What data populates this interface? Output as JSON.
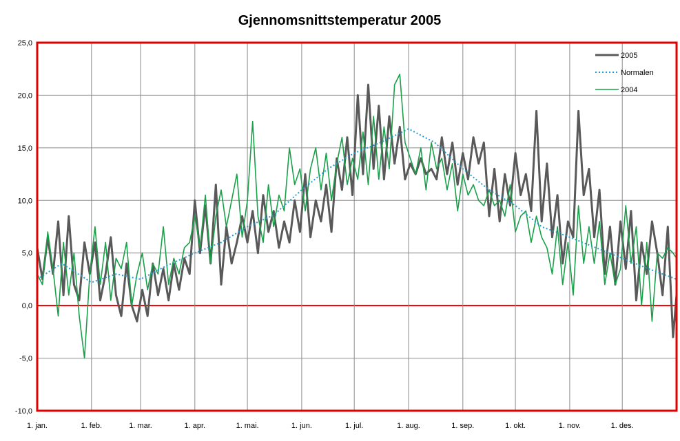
{
  "chart_data": {
    "type": "line",
    "title": "Gjennomsnittstemperatur 2005",
    "xlabel": "",
    "ylabel": "",
    "ylim": [
      -10,
      25
    ],
    "y_ticks": [
      "25,0",
      "20,0",
      "15,0",
      "10,0",
      "5,0",
      "0,0",
      "-5,0",
      "-10,0"
    ],
    "y_tick_values": [
      25,
      20,
      15,
      10,
      5,
      0,
      -5,
      -10
    ],
    "x_ticks": [
      "1. jan.",
      "1. feb.",
      "1. mar.",
      "1. apr.",
      "1. mai.",
      "1. jun.",
      "1. jul.",
      "1. aug.",
      "1. sep.",
      "1. okt.",
      "1. nov.",
      "1. des."
    ],
    "x_tick_days": [
      1,
      32,
      60,
      91,
      121,
      152,
      182,
      213,
      244,
      274,
      305,
      335
    ],
    "x_range_days": [
      1,
      366
    ],
    "grid": true,
    "legend_position": "top-right",
    "series": [
      {
        "name": "2005",
        "color": "#595959",
        "x_days": [
          1,
          4,
          7,
          10,
          13,
          16,
          19,
          22,
          25,
          28,
          31,
          34,
          37,
          40,
          43,
          46,
          49,
          52,
          55,
          58,
          61,
          64,
          67,
          70,
          73,
          76,
          79,
          82,
          85,
          88,
          91,
          94,
          97,
          100,
          103,
          106,
          109,
          112,
          115,
          118,
          121,
          124,
          127,
          130,
          133,
          136,
          139,
          142,
          145,
          148,
          151,
          154,
          157,
          160,
          163,
          166,
          169,
          172,
          175,
          178,
          181,
          184,
          187,
          190,
          193,
          196,
          199,
          202,
          205,
          208,
          211,
          214,
          217,
          220,
          223,
          226,
          229,
          232,
          235,
          238,
          241,
          244,
          247,
          250,
          253,
          256,
          259,
          262,
          265,
          268,
          271,
          274,
          277,
          280,
          283,
          286,
          289,
          292,
          295,
          298,
          301,
          304,
          307,
          310,
          313,
          316,
          319,
          322,
          325,
          328,
          331,
          334,
          337,
          340,
          343,
          346,
          349,
          352,
          355,
          358,
          361,
          364,
          366
        ],
        "values": [
          5.5,
          2.5,
          6.5,
          3.0,
          8.0,
          1.0,
          8.5,
          2.0,
          0.5,
          6.0,
          3.0,
          6.0,
          0.5,
          3.0,
          6.5,
          1.0,
          -1.0,
          4.0,
          0.0,
          -1.5,
          1.5,
          -1.0,
          4.0,
          1.0,
          3.5,
          0.5,
          4.0,
          1.5,
          4.5,
          3.0,
          10.0,
          5.0,
          9.5,
          4.0,
          11.5,
          2.0,
          7.5,
          4.0,
          6.0,
          8.5,
          6.0,
          9.0,
          5.0,
          10.5,
          7.0,
          9.0,
          5.5,
          8.0,
          6.0,
          10.0,
          7.0,
          12.5,
          6.5,
          10.0,
          8.0,
          11.5,
          7.0,
          14.0,
          11.0,
          16.0,
          10.5,
          20.0,
          12.5,
          21.0,
          13.0,
          19.0,
          12.0,
          18.0,
          13.5,
          17.0,
          12.0,
          13.5,
          12.5,
          14.0,
          12.5,
          13.0,
          12.0,
          16.0,
          12.5,
          15.5,
          11.5,
          14.5,
          12.0,
          16.0,
          13.5,
          15.5,
          8.5,
          13.0,
          8.0,
          12.5,
          9.5,
          14.5,
          10.5,
          12.5,
          9.0,
          18.5,
          8.0,
          13.5,
          6.5,
          10.5,
          4.0,
          8.0,
          6.5,
          18.5,
          10.5,
          13.0,
          6.5,
          11.0,
          3.0,
          7.5,
          2.0,
          8.0,
          3.5,
          9.0,
          0.5,
          6.0,
          3.0,
          8.0,
          5.0,
          1.0,
          7.5,
          -3.0,
          1.0
        ]
      },
      {
        "name": "Normalen",
        "color": "#1e9bd7",
        "x_days": [
          1,
          15,
          32,
          46,
          60,
          75,
          91,
          106,
          121,
          136,
          152,
          167,
          182,
          197,
          213,
          228,
          244,
          259,
          274,
          289,
          305,
          320,
          335,
          350,
          366
        ],
        "values": [
          2.5,
          4.0,
          2.2,
          3.0,
          2.5,
          3.8,
          5.0,
          6.0,
          7.5,
          8.6,
          11.0,
          13.0,
          14.5,
          15.5,
          16.8,
          15.5,
          13.0,
          11.0,
          9.5,
          7.5,
          6.5,
          5.5,
          4.5,
          3.5,
          2.5
        ]
      },
      {
        "name": "2004",
        "color": "#19a049",
        "x_days": [
          1,
          4,
          7,
          10,
          13,
          16,
          19,
          22,
          25,
          28,
          31,
          34,
          37,
          40,
          43,
          46,
          49,
          52,
          55,
          58,
          61,
          64,
          67,
          70,
          73,
          76,
          79,
          82,
          85,
          88,
          91,
          94,
          97,
          100,
          103,
          106,
          109,
          112,
          115,
          118,
          121,
          124,
          127,
          130,
          133,
          136,
          139,
          142,
          145,
          148,
          151,
          154,
          157,
          160,
          163,
          166,
          169,
          172,
          175,
          178,
          181,
          184,
          187,
          190,
          193,
          196,
          199,
          202,
          205,
          208,
          211,
          214,
          217,
          220,
          223,
          226,
          229,
          232,
          235,
          238,
          241,
          244,
          247,
          250,
          253,
          256,
          259,
          262,
          265,
          268,
          271,
          274,
          277,
          280,
          283,
          286,
          289,
          292,
          295,
          298,
          301,
          304,
          307,
          310,
          313,
          316,
          319,
          322,
          325,
          328,
          331,
          334,
          337,
          340,
          343,
          346,
          349,
          352,
          355,
          358,
          361,
          364,
          366
        ],
        "values": [
          3.0,
          2.0,
          7.0,
          3.5,
          -1.0,
          6.0,
          1.0,
          5.0,
          -1.0,
          -5.0,
          3.0,
          7.5,
          2.0,
          6.0,
          0.5,
          4.5,
          3.5,
          6.0,
          0.0,
          3.0,
          5.0,
          1.5,
          4.0,
          3.0,
          7.5,
          2.0,
          4.5,
          3.0,
          5.5,
          6.0,
          8.5,
          5.5,
          10.5,
          4.0,
          8.5,
          11.0,
          7.5,
          10.0,
          12.5,
          6.5,
          10.0,
          17.5,
          8.5,
          6.0,
          11.5,
          7.5,
          10.5,
          9.0,
          15.0,
          11.5,
          13.0,
          9.0,
          13.0,
          15.0,
          11.0,
          14.5,
          10.0,
          13.5,
          16.0,
          11.5,
          14.0,
          12.0,
          16.5,
          11.5,
          18.0,
          12.0,
          17.0,
          13.0,
          21.0,
          22.0,
          15.5,
          14.0,
          12.5,
          15.0,
          11.0,
          15.5,
          13.0,
          14.0,
          11.0,
          13.5,
          9.0,
          12.5,
          10.5,
          11.5,
          10.0,
          9.5,
          11.0,
          9.5,
          10.0,
          8.5,
          11.5,
          7.0,
          8.5,
          9.0,
          6.0,
          8.5,
          6.5,
          5.5,
          3.0,
          7.5,
          2.0,
          6.0,
          1.0,
          9.5,
          4.0,
          7.5,
          4.0,
          8.0,
          2.0,
          5.0,
          2.0,
          3.5,
          9.5,
          4.0,
          7.5,
          0.0,
          6.0,
          -1.5,
          5.0,
          4.5,
          5.5,
          5.0,
          4.5
        ]
      }
    ]
  }
}
